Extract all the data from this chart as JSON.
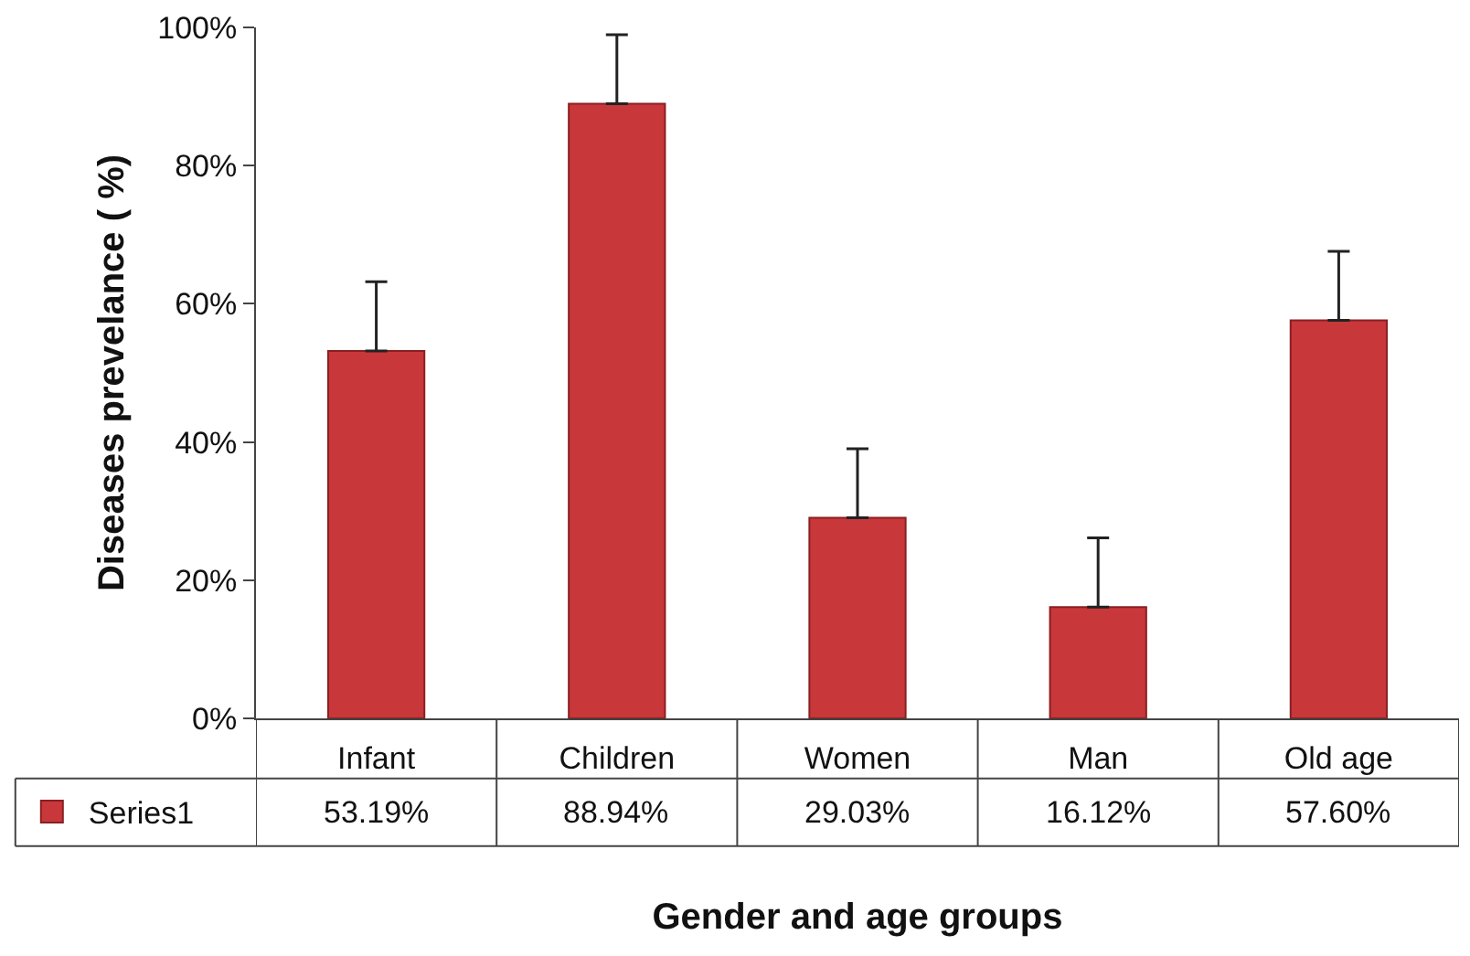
{
  "chart_data": {
    "type": "bar",
    "xlabel": "Gender and age groups",
    "ylabel": "Diseases prevelance ( %)",
    "categories": [
      "Infant",
      "Children",
      "Women",
      "Man",
      "Old age"
    ],
    "series": [
      {
        "name": "Series1",
        "color": "#c8373a",
        "values": [
          53.19,
          88.94,
          29.03,
          16.12,
          57.6
        ],
        "errors": [
          [
            53.19,
            63.19
          ],
          [
            88.94,
            98.94
          ],
          [
            29.03,
            39.03
          ],
          [
            16.12,
            26.12
          ],
          [
            57.6,
            67.6
          ]
        ],
        "value_labels": [
          "53.19%",
          "88.94%",
          "29.03%",
          "16.12%",
          "57.60%"
        ]
      }
    ],
    "ylim": [
      0,
      100
    ],
    "yticks": [
      {
        "value": 0,
        "label": "0%"
      },
      {
        "value": 20,
        "label": "20%"
      },
      {
        "value": 40,
        "label": "40%"
      },
      {
        "value": 60,
        "label": "60%"
      },
      {
        "value": 80,
        "label": "80%"
      },
      {
        "value": 100,
        "label": "100%"
      }
    ],
    "grid": false,
    "legend": "bottom left"
  }
}
